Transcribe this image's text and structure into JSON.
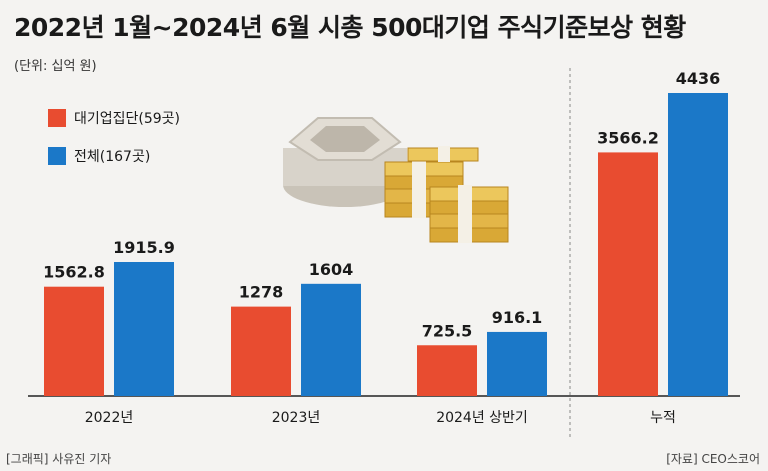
{
  "title": "2022년 1월~2024년 6월 시총 500대기업 주식기준보상 현황",
  "unit": "(단위: 십억 원)",
  "footer": {
    "left": "[그래픽] 사유진 기자",
    "right": "[자료] CEO스코어"
  },
  "colors": {
    "group": "#e84c30",
    "total": "#1b78c8",
    "background": "#f4f3f1"
  },
  "chart_data": {
    "type": "bar",
    "categories": [
      "2022년",
      "2023년",
      "2024년 상반기",
      "누적"
    ],
    "series": [
      {
        "name": "대기업집단(59곳)",
        "values": [
          1562.8,
          1278,
          725.5,
          3566.2
        ]
      },
      {
        "name": "전체(167곳)",
        "values": [
          1915.9,
          1604,
          916.1,
          4436
        ]
      }
    ],
    "value_labels": [
      [
        "1562.8",
        "1278",
        "725.5",
        "3566.2"
      ],
      [
        "1915.9",
        "1604",
        "916.1",
        "4436"
      ]
    ],
    "legend_position": "top-left",
    "grid": false,
    "axis_scale_note": "left three groups and 누적 group are drawn on separate scales"
  }
}
